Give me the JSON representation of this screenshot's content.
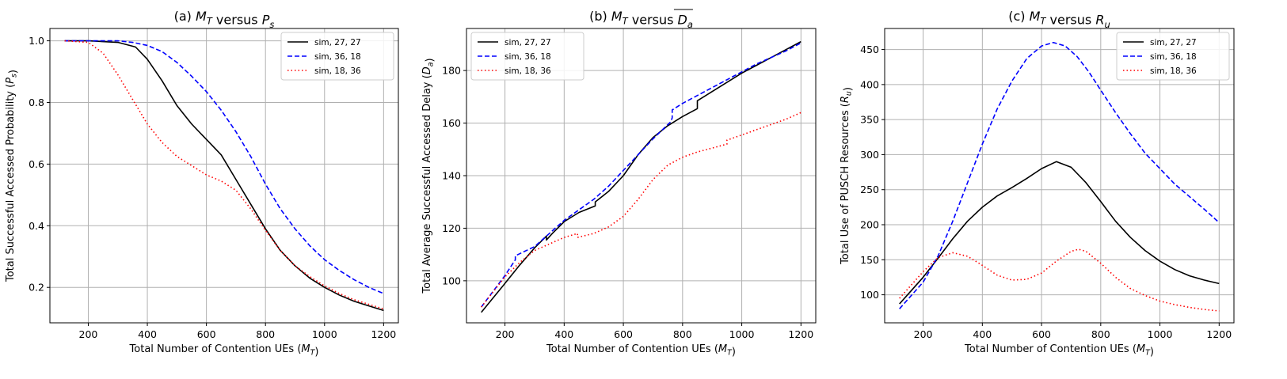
{
  "chart_data": [
    {
      "type": "line",
      "title": "(a) M_T versus P_s",
      "title_parts": [
        "(a) ",
        "M",
        "T",
        " versus ",
        "P",
        "s"
      ],
      "xlabel": "Total Number of Contention UEs (M_T)",
      "xlabel_parts": [
        "Total Number of Contention UEs (",
        "M",
        "T",
        ")"
      ],
      "ylabel": "Total Successful Accessed Probability (P_s)",
      "ylabel_parts": [
        "Total Successful Accessed Probability (",
        "P",
        "s",
        ")"
      ],
      "xlim": [
        70,
        1250
      ],
      "ylim": [
        0.085,
        1.04
      ],
      "xticks": [
        200,
        400,
        600,
        800,
        1000,
        1200
      ],
      "yticks": [
        0.2,
        0.4,
        0.6,
        0.8,
        1.0
      ],
      "ytick_labels": [
        "0.2",
        "0.4",
        "0.6",
        "0.8",
        "1.0"
      ],
      "legend_position": "upper right",
      "grid": true,
      "series": [
        {
          "name": "sim, 27, 27",
          "color": "#000000",
          "dash": "solid",
          "x": [
            120,
            200,
            300,
            360,
            400,
            450,
            500,
            550,
            600,
            650,
            700,
            750,
            800,
            850,
            900,
            950,
            1000,
            1050,
            1100,
            1150,
            1200
          ],
          "y": [
            1.0,
            1.0,
            0.995,
            0.98,
            0.94,
            0.87,
            0.79,
            0.73,
            0.68,
            0.63,
            0.55,
            0.47,
            0.39,
            0.32,
            0.27,
            0.23,
            0.2,
            0.175,
            0.155,
            0.14,
            0.125
          ]
        },
        {
          "name": "sim, 36, 18",
          "color": "#0000ff",
          "dash": "dashed",
          "x": [
            120,
            200,
            300,
            350,
            400,
            450,
            500,
            550,
            600,
            650,
            700,
            750,
            800,
            850,
            900,
            950,
            1000,
            1050,
            1100,
            1150,
            1200
          ],
          "y": [
            1.0,
            1.0,
            1.0,
            0.995,
            0.985,
            0.965,
            0.93,
            0.885,
            0.835,
            0.775,
            0.705,
            0.625,
            0.535,
            0.455,
            0.39,
            0.335,
            0.29,
            0.255,
            0.225,
            0.2,
            0.18
          ]
        },
        {
          "name": "sim, 18, 36",
          "color": "#ff0000",
          "dash": "dotted",
          "x": [
            120,
            200,
            250,
            300,
            350,
            400,
            450,
            500,
            550,
            600,
            650,
            700,
            750,
            800,
            850,
            900,
            950,
            1000,
            1050,
            1100,
            1150,
            1200
          ],
          "y": [
            1.0,
            0.995,
            0.96,
            0.89,
            0.81,
            0.73,
            0.67,
            0.625,
            0.595,
            0.565,
            0.545,
            0.515,
            0.455,
            0.385,
            0.32,
            0.27,
            0.235,
            0.205,
            0.18,
            0.16,
            0.145,
            0.13
          ]
        }
      ]
    },
    {
      "type": "line",
      "title": "(b) M_T versus D_a",
      "title_parts": [
        "(b) ",
        "M",
        "T",
        " versus ",
        "D",
        "a"
      ],
      "xlabel": "Total Number of Contention UEs (M_T)",
      "xlabel_parts": [
        "Total Number of Contention UEs (",
        "M",
        "T",
        ")"
      ],
      "ylabel": "Total Average Successful Accessed Delay (D_a)",
      "ylabel_parts": [
        "Total Average Successful Accessed Delay (",
        "D",
        "a",
        ")"
      ],
      "xlim": [
        70,
        1250
      ],
      "ylim": [
        84,
        196
      ],
      "xticks": [
        200,
        400,
        600,
        800,
        1000,
        1200
      ],
      "yticks": [
        100,
        120,
        140,
        160,
        180
      ],
      "ytick_labels": [
        "100",
        "120",
        "140",
        "160",
        "180"
      ],
      "legend_position": "upper left",
      "grid": true,
      "series": [
        {
          "name": "sim, 27, 27",
          "color": "#000000",
          "dash": "solid",
          "x": [
            120,
            200,
            250,
            300,
            340,
            340,
            360,
            400,
            450,
            505,
            505,
            550,
            600,
            650,
            700,
            750,
            800,
            850,
            850,
            900,
            950,
            1000,
            1050,
            1100,
            1150,
            1200
          ],
          "y": [
            88,
            99,
            106,
            112.5,
            117,
            115.5,
            118,
            122.5,
            126,
            128.5,
            130,
            134,
            140,
            148,
            154.5,
            159,
            162.5,
            165.5,
            168.5,
            172,
            175.5,
            179,
            182,
            185,
            188,
            191
          ]
        },
        {
          "name": "sim, 36, 18",
          "color": "#0000ff",
          "dash": "dashed",
          "x": [
            120,
            200,
            235,
            235,
            300,
            350,
            400,
            450,
            500,
            550,
            600,
            650,
            700,
            760,
            765,
            765,
            800,
            850,
            900,
            950,
            1000,
            1050,
            1100,
            1150,
            1200
          ],
          "y": [
            90,
            102,
            108,
            109.5,
            113,
            118,
            123,
            127,
            131,
            136,
            142,
            148,
            154,
            160.5,
            162,
            165,
            167.5,
            170.5,
            173.5,
            176.5,
            179.5,
            182.5,
            185,
            187.5,
            190.5
          ]
        },
        {
          "name": "sim, 18, 36",
          "color": "#ff0000",
          "dash": "dotted",
          "x": [
            120,
            200,
            250,
            300,
            340,
            400,
            445,
            445,
            500,
            550,
            600,
            650,
            700,
            750,
            800,
            850,
            900,
            950,
            950,
            1000,
            1050,
            1100,
            1150,
            1200
          ],
          "y": [
            90,
            101.5,
            107,
            111.5,
            113.5,
            116.5,
            118,
            116.5,
            118,
            120.5,
            124.5,
            131,
            138.5,
            144,
            147,
            149,
            150.5,
            152,
            153.5,
            155.5,
            157.5,
            159.5,
            161.5,
            164
          ]
        }
      ]
    },
    {
      "type": "line",
      "title": "(c) M_T versus R_u",
      "title_parts": [
        "(c) ",
        "M",
        "T",
        " versus ",
        "R",
        "u"
      ],
      "xlabel": "Total Number of Contention UEs (M_T)",
      "xlabel_parts": [
        "Total Number of Contention UEs (",
        "M",
        "T",
        ")"
      ],
      "ylabel": "Total Use of PUSCH Resources (R_u)",
      "ylabel_parts": [
        "Total Use of PUSCH Resources (",
        "R",
        "u",
        ")"
      ],
      "xlim": [
        70,
        1250
      ],
      "ylim": [
        60,
        480
      ],
      "xticks": [
        200,
        400,
        600,
        800,
        1000,
        1200
      ],
      "yticks": [
        100,
        150,
        200,
        250,
        300,
        350,
        400,
        450
      ],
      "ytick_labels": [
        "100",
        "150",
        "200",
        "250",
        "300",
        "350",
        "400",
        "450"
      ],
      "legend_position": "upper right",
      "grid": true,
      "series": [
        {
          "name": "sim, 27, 27",
          "color": "#000000",
          "dash": "solid",
          "x": [
            120,
            200,
            250,
            300,
            350,
            400,
            450,
            500,
            550,
            600,
            650,
            700,
            750,
            800,
            850,
            900,
            950,
            1000,
            1050,
            1100,
            1150,
            1200
          ],
          "y": [
            87,
            125,
            152,
            180,
            205,
            225,
            241,
            253,
            266,
            280,
            290,
            282,
            260,
            233,
            205,
            182,
            163,
            148,
            136,
            127,
            121,
            116
          ]
        },
        {
          "name": "sim, 36, 18",
          "color": "#0000ff",
          "dash": "dashed",
          "x": [
            120,
            200,
            250,
            300,
            350,
            400,
            450,
            500,
            550,
            600,
            640,
            680,
            720,
            760,
            800,
            850,
            900,
            950,
            1000,
            1050,
            1100,
            1150,
            1200
          ],
          "y": [
            80,
            118,
            155,
            205,
            260,
            315,
            365,
            405,
            437,
            455,
            460,
            455,
            440,
            418,
            392,
            360,
            330,
            302,
            280,
            258,
            240,
            222,
            203
          ]
        },
        {
          "name": "sim, 18, 36",
          "color": "#ff0000",
          "dash": "dotted",
          "x": [
            120,
            200,
            250,
            300,
            350,
            400,
            450,
            500,
            550,
            600,
            650,
            700,
            725,
            750,
            800,
            850,
            900,
            950,
            1000,
            1050,
            1100,
            1150,
            1200
          ],
          "y": [
            95,
            133,
            153,
            160,
            155,
            142,
            128,
            121,
            122,
            131,
            148,
            162,
            165,
            162,
            145,
            125,
            109,
            99,
            91,
            86,
            82,
            79,
            77
          ]
        }
      ]
    }
  ]
}
